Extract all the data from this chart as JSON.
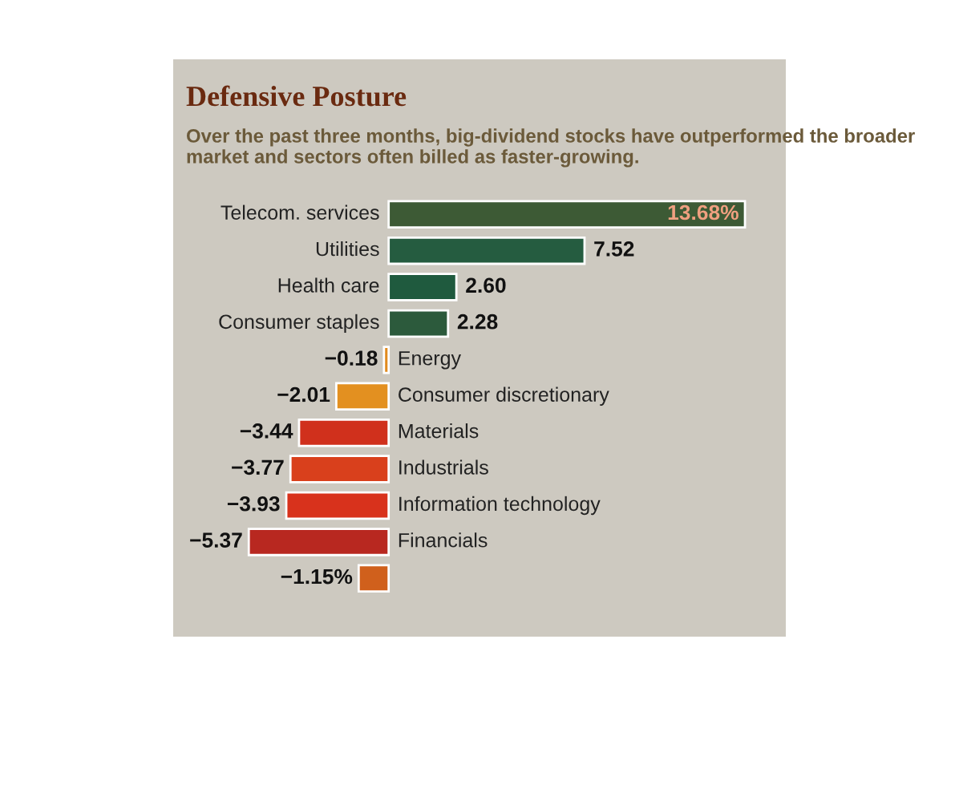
{
  "chart_data": {
    "type": "bar",
    "orientation": "horizontal",
    "title": "Defensive Posture",
    "subtitle": "Over the past three months, big-dividend stocks have outperformed the broader market and sectors often billed as faster-growing.",
    "categories": [
      "Telecom. services",
      "Utilities",
      "Health care",
      "Consumer staples",
      "Energy",
      "Consumer discretionary",
      "Materials",
      "Industrials",
      "Information technology",
      "Financials",
      null
    ],
    "values": [
      13.68,
      7.52,
      2.6,
      2.28,
      -0.18,
      -2.01,
      -3.44,
      -3.77,
      -3.93,
      -5.37,
      -1.15
    ],
    "colors": [
      "#3d5a35",
      "#255c40",
      "#1f5a3e",
      "#2c5a3c",
      "#e08a1e",
      "#e39020",
      "#d0301c",
      "#d9401c",
      "#d8321c",
      "#b82820",
      "#d0601c"
    ],
    "value_labels": [
      "13.68%",
      "7.52",
      "2.60",
      "2.28",
      "−0.18",
      "−2.01",
      "−3.44",
      "−3.77",
      "−3.93",
      "−5.37",
      "−1.15%"
    ]
  }
}
